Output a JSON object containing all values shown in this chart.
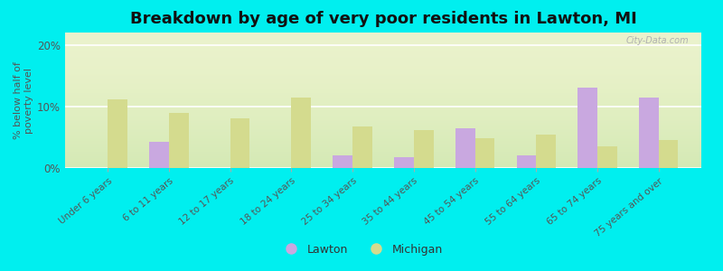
{
  "title": "Breakdown by age of very poor residents in Lawton, MI",
  "ylabel": "% below half of\npoverty level",
  "categories": [
    "Under 6 years",
    "6 to 11 years",
    "12 to 17 years",
    "18 to 24 years",
    "25 to 34 years",
    "35 to 44 years",
    "45 to 54 years",
    "55 to 64 years",
    "65 to 74 years",
    "75 years and over"
  ],
  "lawton_values": [
    0,
    4.2,
    0,
    0,
    2.0,
    1.8,
    6.5,
    2.0,
    13.0,
    11.5
  ],
  "michigan_values": [
    11.2,
    9.0,
    8.0,
    11.5,
    6.8,
    6.2,
    4.8,
    5.5,
    3.5,
    4.5
  ],
  "lawton_color": "#c9a8e0",
  "michigan_color": "#d4db8e",
  "background_outer": "#00efef",
  "background_plot_bottom": "#e8f0c0",
  "background_plot_top": "#ffffff",
  "ylim": [
    0,
    22
  ],
  "yticks": [
    0,
    10,
    20
  ],
  "ytick_labels": [
    "0%",
    "10%",
    "20%"
  ],
  "title_fontsize": 13,
  "legend_labels": [
    "Lawton",
    "Michigan"
  ],
  "bar_width": 0.32
}
